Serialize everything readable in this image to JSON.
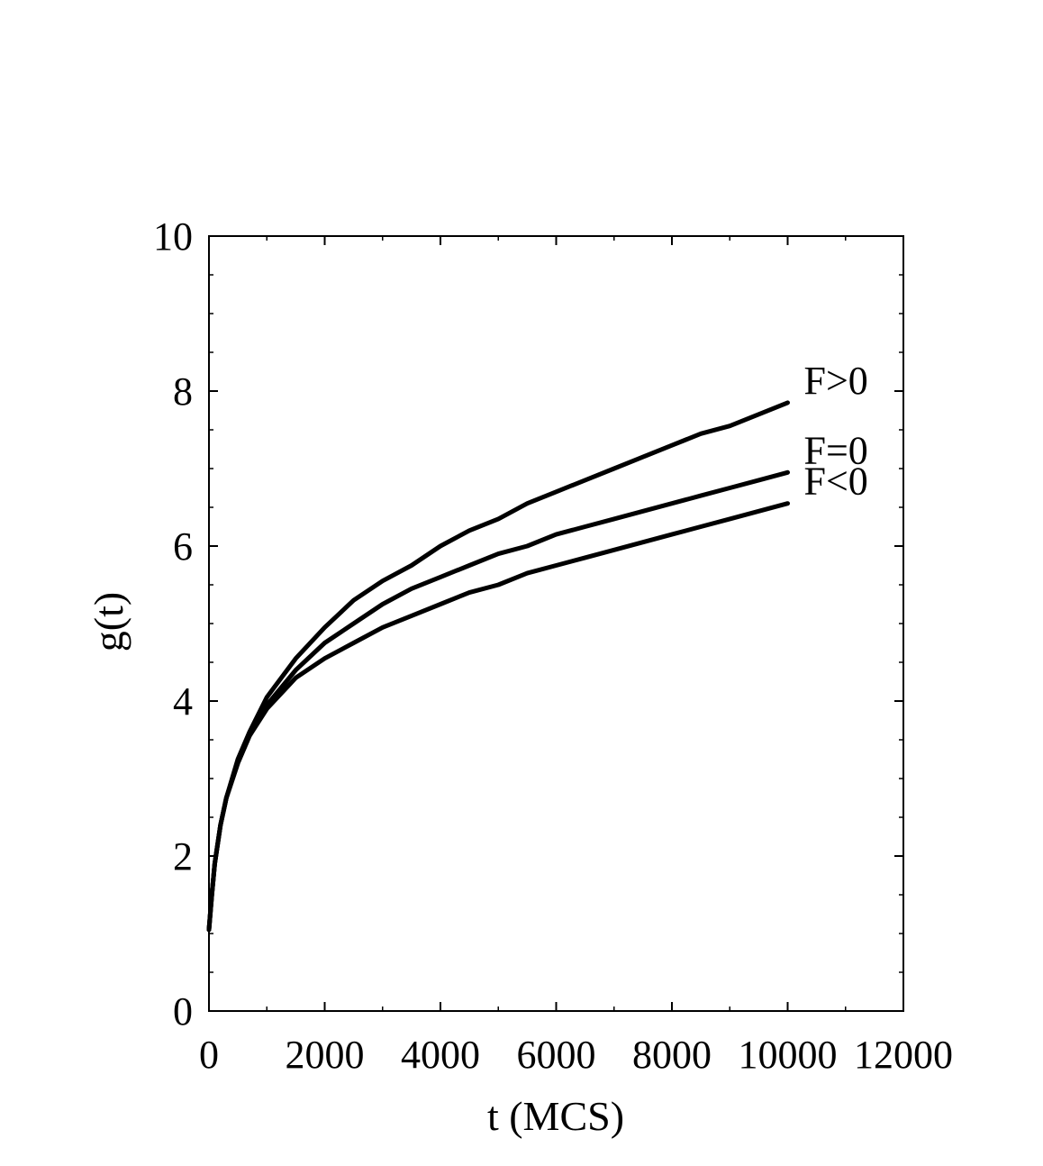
{
  "chart_data": {
    "type": "line",
    "title": "",
    "xlabel": "t (MCS)",
    "ylabel": "g(t)",
    "xlim": [
      0,
      12000
    ],
    "ylim": [
      0,
      10
    ],
    "xticks": [
      0,
      2000,
      4000,
      6000,
      8000,
      10000,
      12000
    ],
    "yticks": [
      0,
      2,
      4,
      6,
      8,
      10
    ],
    "xtick_labels": [
      "0",
      "2000",
      "4000",
      "6000",
      "8000",
      "10000",
      "12000"
    ],
    "ytick_labels": [
      "0",
      "2",
      "4",
      "6",
      "8",
      "10"
    ],
    "x_minor_step": 1000,
    "y_minor_step": 0.5,
    "grid": false,
    "legend": "none",
    "series": [
      {
        "name": "F>0",
        "color": "#000000",
        "x": [
          0,
          50,
          100,
          200,
          300,
          500,
          700,
          1000,
          1500,
          2000,
          2500,
          3000,
          3500,
          4000,
          4500,
          5000,
          5500,
          6000,
          6500,
          7000,
          7500,
          8000,
          8500,
          9000,
          9500,
          10000
        ],
        "y": [
          1.05,
          1.5,
          1.9,
          2.4,
          2.75,
          3.25,
          3.6,
          4.05,
          4.55,
          4.95,
          5.3,
          5.55,
          5.75,
          6.0,
          6.2,
          6.35,
          6.55,
          6.7,
          6.85,
          7.0,
          7.15,
          7.3,
          7.45,
          7.55,
          7.7,
          7.85
        ]
      },
      {
        "name": "F=0",
        "color": "#000000",
        "x": [
          0,
          50,
          100,
          200,
          300,
          500,
          700,
          1000,
          1500,
          2000,
          2500,
          3000,
          3500,
          4000,
          4500,
          5000,
          5500,
          6000,
          6500,
          7000,
          7500,
          8000,
          8500,
          9000,
          9500,
          10000
        ],
        "y": [
          1.05,
          1.5,
          1.9,
          2.4,
          2.75,
          3.2,
          3.55,
          3.95,
          4.4,
          4.75,
          5.0,
          5.25,
          5.45,
          5.6,
          5.75,
          5.9,
          6.0,
          6.15,
          6.25,
          6.35,
          6.45,
          6.55,
          6.65,
          6.75,
          6.85,
          6.95
        ]
      },
      {
        "name": "F<0",
        "color": "#000000",
        "x": [
          0,
          50,
          100,
          200,
          300,
          500,
          700,
          1000,
          1500,
          2000,
          2500,
          3000,
          3500,
          4000,
          4500,
          5000,
          5500,
          6000,
          6500,
          7000,
          7500,
          8000,
          8500,
          9000,
          9500,
          10000
        ],
        "y": [
          1.05,
          1.5,
          1.9,
          2.4,
          2.75,
          3.2,
          3.55,
          3.9,
          4.3,
          4.55,
          4.75,
          4.95,
          5.1,
          5.25,
          5.4,
          5.5,
          5.65,
          5.75,
          5.85,
          5.95,
          6.05,
          6.15,
          6.25,
          6.35,
          6.45,
          6.55
        ]
      }
    ]
  }
}
